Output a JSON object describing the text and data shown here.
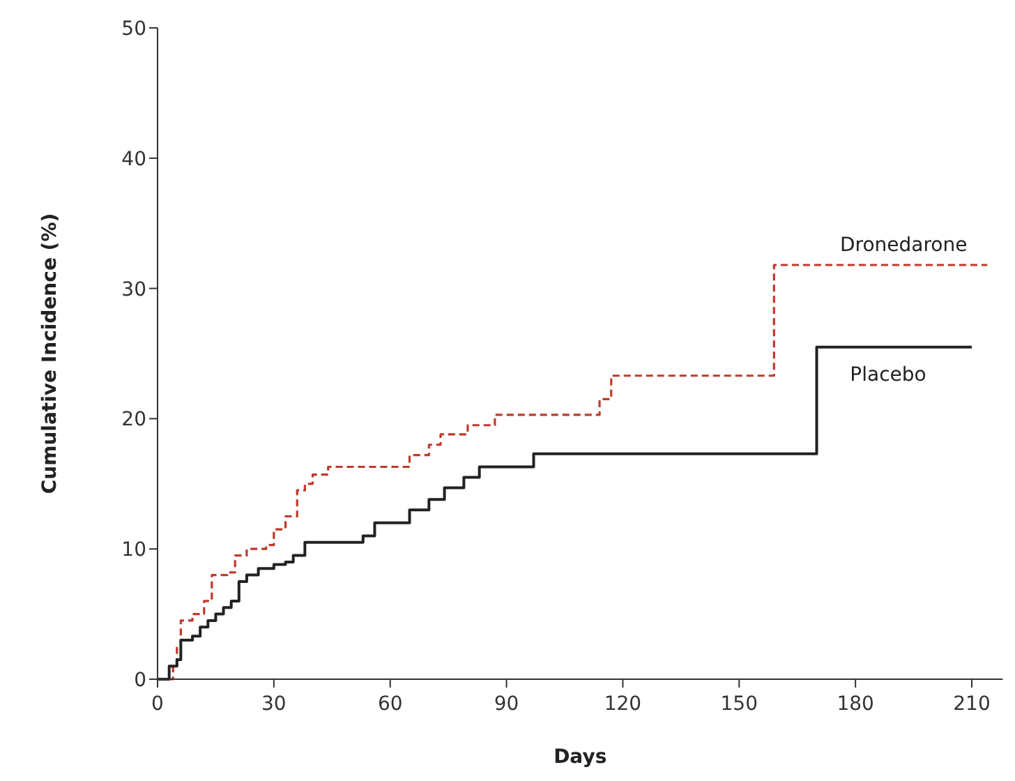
{
  "chart_data": {
    "type": "step",
    "xlabel": "Days",
    "ylabel": "Cumulative Incidence (%)",
    "xlim": [
      0,
      218
    ],
    "ylim": [
      0,
      50
    ],
    "xticks": [
      0,
      30,
      60,
      90,
      120,
      150,
      180,
      210
    ],
    "yticks": [
      0,
      10,
      20,
      30,
      40,
      50
    ],
    "grid": false,
    "marker": "none",
    "series": [
      {
        "name": "Dronedarone",
        "color": "#c0392b",
        "line_style": "dashed",
        "x": [
          0,
          3,
          4,
          5,
          6,
          9,
          12,
          14,
          18,
          20,
          23,
          28,
          30,
          33,
          36,
          38,
          40,
          44,
          65,
          70,
          73,
          80,
          87,
          114,
          117,
          159,
          214
        ],
        "values": [
          0,
          0,
          1,
          2.5,
          4.5,
          5,
          6,
          8,
          8.2,
          9.5,
          10,
          10.3,
          11.5,
          12.5,
          14.5,
          15,
          15.7,
          16.3,
          17.2,
          18,
          18.8,
          19.5,
          20.3,
          21.5,
          23.3,
          31.8,
          31.8
        ]
      },
      {
        "name": "Placebo",
        "color": "#222222",
        "line_style": "solid",
        "x": [
          0,
          3,
          5,
          6,
          9,
          11,
          13,
          15,
          17,
          19,
          21,
          23,
          26,
          30,
          33,
          35,
          38,
          53,
          56,
          65,
          70,
          74,
          79,
          83,
          97,
          170,
          210
        ],
        "values": [
          0,
          1,
          1.5,
          3,
          3.3,
          4,
          4.5,
          5,
          5.5,
          6,
          7.5,
          8,
          8.5,
          8.8,
          9,
          9.5,
          10.5,
          11,
          12,
          13,
          13.8,
          14.7,
          15.5,
          16.3,
          17.3,
          25.5,
          25.5
        ]
      }
    ]
  }
}
